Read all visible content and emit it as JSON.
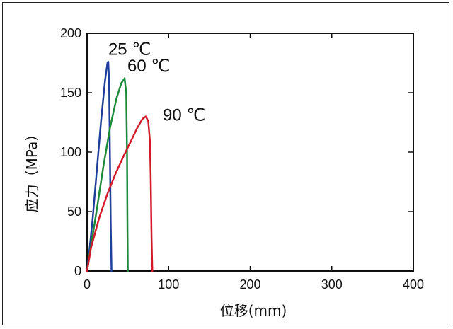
{
  "chart_data": {
    "type": "line",
    "xlabel": "位移(mm)",
    "ylabel": "应力（MPa）",
    "xlim": [
      0,
      400
    ],
    "ylim": [
      0,
      200
    ],
    "xticks": [
      0,
      100,
      200,
      300,
      400
    ],
    "yticks": [
      0,
      50,
      100,
      150,
      200
    ],
    "xtick_labels": [
      "0",
      "100",
      "200",
      "300",
      "400"
    ],
    "ytick_labels": [
      "0",
      "50",
      "100",
      "150",
      "200"
    ],
    "grid": false,
    "series": [
      {
        "name": "25 ℃",
        "color": "#1f3f9a",
        "x": [
          0,
          3,
          7,
          12,
          17,
          22,
          25,
          26,
          27,
          28,
          29,
          30
        ],
        "y": [
          0,
          18,
          45,
          85,
          125,
          160,
          175,
          176,
          160,
          100,
          40,
          0
        ]
      },
      {
        "name": "60 ℃",
        "color": "#1d8a3a",
        "x": [
          0,
          5,
          12,
          20,
          28,
          36,
          42,
          46,
          48,
          49,
          49.5,
          50
        ],
        "y": [
          0,
          22,
          52,
          88,
          120,
          145,
          158,
          162,
          150,
          100,
          40,
          0
        ]
      },
      {
        "name": "90 ℃",
        "color": "#d31a2a",
        "x": [
          0,
          5,
          15,
          25,
          35,
          45,
          55,
          62,
          68,
          72,
          75,
          77,
          78,
          79,
          80
        ],
        "y": [
          0,
          20,
          45,
          65,
          82,
          97,
          111,
          121,
          128,
          130,
          126,
          110,
          80,
          30,
          0
        ]
      }
    ]
  }
}
